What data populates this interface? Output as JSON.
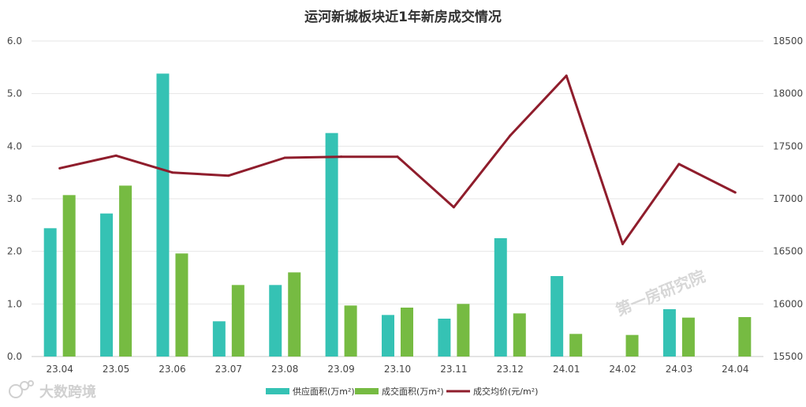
{
  "chart_data": {
    "type": "bar+line",
    "title": "运河新城板块近1年新房成交情况",
    "categories": [
      "23.04",
      "23.05",
      "23.06",
      "23.07",
      "23.08",
      "23.09",
      "23.10",
      "23.11",
      "23.12",
      "24.01",
      "24.02",
      "24.03",
      "24.04"
    ],
    "series": [
      {
        "name": "供应面积(万m²)",
        "type": "bar",
        "axis": "left",
        "color": "#35c2b4",
        "values": [
          2.44,
          2.72,
          5.38,
          0.67,
          1.36,
          4.25,
          0.79,
          0.72,
          2.25,
          1.53,
          0,
          0.9,
          0
        ]
      },
      {
        "name": "成交面积(万m²)",
        "type": "bar",
        "axis": "left",
        "color": "#76bb42",
        "values": [
          3.07,
          3.25,
          1.96,
          1.36,
          1.6,
          0.97,
          0.93,
          1.0,
          0.82,
          0.43,
          0.41,
          0.74,
          0.75
        ]
      },
      {
        "name": "成交均价(元/m²)",
        "type": "line",
        "axis": "right",
        "color": "#8f1d2c",
        "values": [
          17290,
          17410,
          17250,
          17220,
          17390,
          17400,
          17400,
          16920,
          17600,
          18170,
          16570,
          17330,
          17060
        ]
      }
    ],
    "left_axis": {
      "min": 0,
      "max": 6,
      "ticks": [
        "0.0",
        "1.0",
        "2.0",
        "3.0",
        "4.0",
        "5.0",
        "6.0"
      ]
    },
    "right_axis": {
      "min": 15500,
      "max": 18500,
      "ticks": [
        "15500",
        "16000",
        "16500",
        "17000",
        "17500",
        "18000",
        "18500"
      ]
    },
    "grid": true,
    "legend_position": "bottom"
  },
  "watermark": "第一房研究院",
  "logo": {
    "text": "大数跨境"
  }
}
